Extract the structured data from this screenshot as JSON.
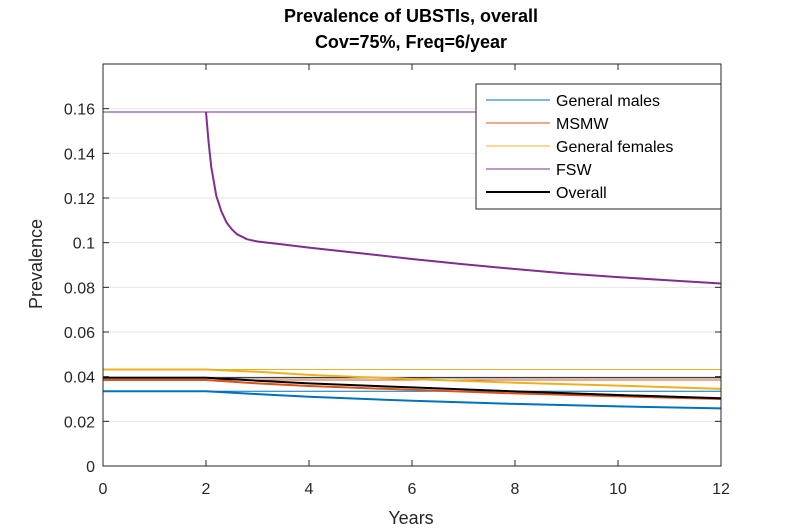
{
  "chart_data": {
    "type": "line",
    "title": "Prevalence of UBSTIs, overall",
    "subtitle": "Cov=75%, Freq=6/year",
    "xlabel": "Years",
    "ylabel": "Prevalence",
    "xlim": [
      0,
      12
    ],
    "ylim": [
      0,
      0.18
    ],
    "xticks": [
      0,
      2,
      4,
      6,
      8,
      10,
      12
    ],
    "yticks": [
      0,
      0.02,
      0.04,
      0.06,
      0.08,
      0.1,
      0.12,
      0.14,
      0.16
    ],
    "ytick_labels": [
      "0",
      "0.02",
      "0.04",
      "0.06",
      "0.08",
      "0.1",
      "0.12",
      "0.14",
      "0.16"
    ],
    "grid": "horizontal",
    "legend_position": "top-right",
    "series": [
      {
        "name": "General males",
        "color": "#0072BD",
        "width": 1,
        "x": [
          0,
          12
        ],
        "y": [
          0.0335,
          0.0335
        ]
      },
      {
        "name": "MSMW",
        "color": "#D95319",
        "width": 1,
        "x": [
          0,
          12
        ],
        "y": [
          0.0385,
          0.0385
        ]
      },
      {
        "name": "General females",
        "color": "#EDB120",
        "width": 1,
        "x": [
          0,
          12
        ],
        "y": [
          0.0432,
          0.0432
        ]
      },
      {
        "name": "FSW",
        "color": "#7E2F8E",
        "width": 1,
        "x": [
          0,
          12
        ],
        "y": [
          0.1585,
          0.1585
        ]
      },
      {
        "name": "Overall",
        "color": "#000000",
        "width": 1,
        "x": [
          0,
          12
        ],
        "y": [
          0.0395,
          0.0395
        ]
      },
      {
        "name": "",
        "color": "#0072BD",
        "width": 2,
        "x": [
          0,
          2,
          3,
          4,
          6,
          8,
          10,
          12
        ],
        "y": [
          0.0335,
          0.0335,
          0.0322,
          0.031,
          0.0292,
          0.0278,
          0.0267,
          0.0258
        ]
      },
      {
        "name": "",
        "color": "#D95319",
        "width": 2,
        "x": [
          0,
          2,
          3,
          4,
          6,
          8,
          10,
          12
        ],
        "y": [
          0.0385,
          0.0385,
          0.037,
          0.0358,
          0.0341,
          0.0325,
          0.0312,
          0.03
        ]
      },
      {
        "name": "",
        "color": "#EDB120",
        "width": 2,
        "x": [
          0,
          2,
          3,
          4,
          5,
          6,
          8,
          10,
          12
        ],
        "y": [
          0.0432,
          0.0432,
          0.0422,
          0.0408,
          0.0398,
          0.0389,
          0.0373,
          0.036,
          0.0345
        ]
      },
      {
        "name": "",
        "color": "#7E2F8E",
        "width": 2,
        "x": [
          2,
          2.05,
          2.1,
          2.2,
          2.3,
          2.4,
          2.5,
          2.6,
          2.8,
          3,
          3.5,
          4,
          5,
          6,
          7,
          8,
          9,
          10,
          11,
          12
        ],
        "y": [
          0.1585,
          0.145,
          0.134,
          0.121,
          0.114,
          0.109,
          0.106,
          0.1038,
          0.1015,
          0.1005,
          0.0992,
          0.0978,
          0.0953,
          0.0927,
          0.0903,
          0.0882,
          0.0862,
          0.0846,
          0.0831,
          0.0817
        ]
      },
      {
        "name": "",
        "color": "#000000",
        "width": 2,
        "x": [
          0,
          2,
          3,
          4,
          6,
          8,
          10,
          12
        ],
        "y": [
          0.0395,
          0.0395,
          0.0382,
          0.037,
          0.0352,
          0.0334,
          0.0318,
          0.0303
        ]
      }
    ]
  }
}
